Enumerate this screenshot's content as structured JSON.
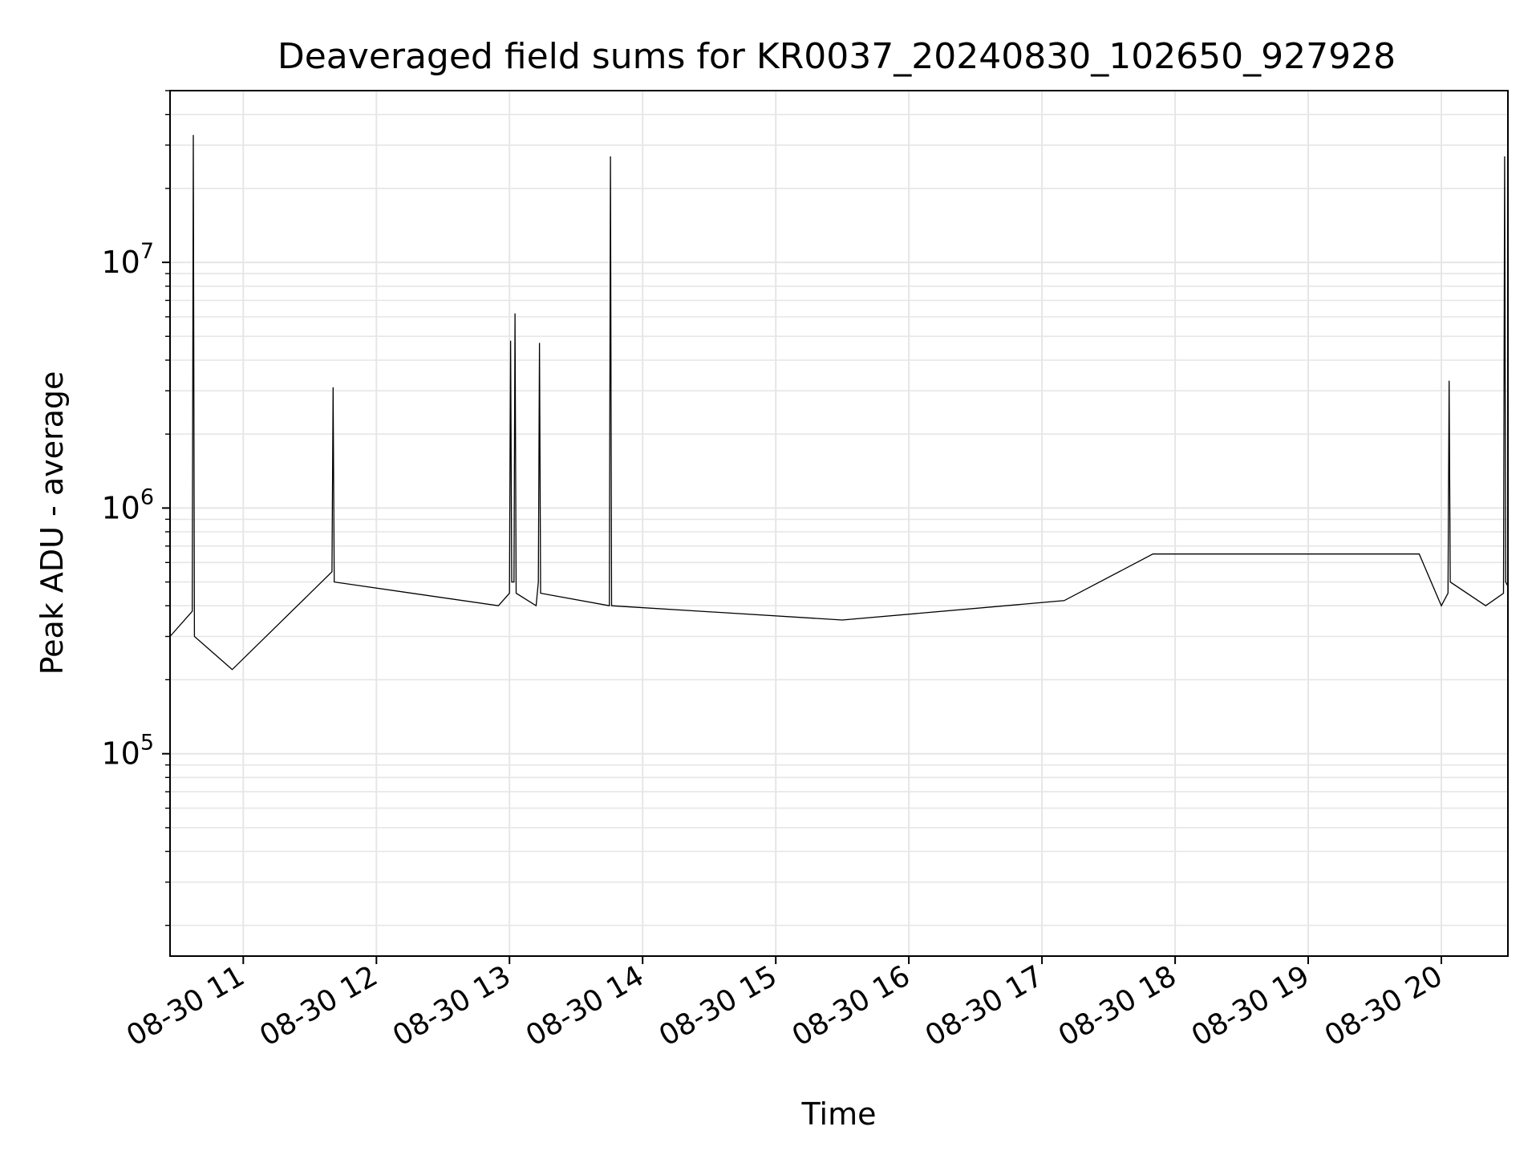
{
  "chart_data": {
    "type": "line",
    "title": "Deaveraged field sums for KR0037_20240830_102650_927928",
    "xlabel": "Time",
    "ylabel": "Peak ADU - average",
    "x_range": [
      "2024-08-30T10:27:00",
      "2024-08-30T20:30:00"
    ],
    "x_ticks": [
      {
        "t": "2024-08-30T11:00",
        "label": "08-30 11"
      },
      {
        "t": "2024-08-30T12:00",
        "label": "08-30 12"
      },
      {
        "t": "2024-08-30T13:00",
        "label": "08-30 13"
      },
      {
        "t": "2024-08-30T14:00",
        "label": "08-30 14"
      },
      {
        "t": "2024-08-30T15:00",
        "label": "08-30 15"
      },
      {
        "t": "2024-08-30T16:00",
        "label": "08-30 16"
      },
      {
        "t": "2024-08-30T17:00",
        "label": "08-30 17"
      },
      {
        "t": "2024-08-30T18:00",
        "label": "08-30 18"
      },
      {
        "t": "2024-08-30T19:00",
        "label": "08-30 19"
      },
      {
        "t": "2024-08-30T20:00",
        "label": "08-30 20"
      }
    ],
    "y_scale": "log",
    "ylim": [
      15000,
      50000000
    ],
    "y_ticks": [
      {
        "value": 100000,
        "base": "10",
        "exp": "5"
      },
      {
        "value": 1000000,
        "base": "10",
        "exp": "6"
      },
      {
        "value": 10000000,
        "base": "10",
        "exp": "7"
      }
    ],
    "grid": true,
    "line_color": "#000000",
    "grid_color": "#e6e6e6",
    "series": [
      {
        "x": [
          "2024-08-30T10:27",
          "2024-08-30T10:37",
          "2024-08-30T10:37:30",
          "2024-08-30T10:38",
          "2024-08-30T10:55",
          "2024-08-30T11:40",
          "2024-08-30T11:40:30",
          "2024-08-30T11:41",
          "2024-08-30T12:55",
          "2024-08-30T13:00",
          "2024-08-30T13:00:30",
          "2024-08-30T13:01",
          "2024-08-30T13:02",
          "2024-08-30T13:02:30",
          "2024-08-30T13:03",
          "2024-08-30T13:12",
          "2024-08-30T13:13",
          "2024-08-30T13:13:30",
          "2024-08-30T13:14",
          "2024-08-30T13:45",
          "2024-08-30T13:45:30",
          "2024-08-30T13:46",
          "2024-08-30T15:30",
          "2024-08-30T17:10",
          "2024-08-30T17:50",
          "2024-08-30T19:50",
          "2024-08-30T20:00",
          "2024-08-30T20:03",
          "2024-08-30T20:03:30",
          "2024-08-30T20:04",
          "2024-08-30T20:20",
          "2024-08-30T20:28",
          "2024-08-30T20:28:30",
          "2024-08-30T20:29",
          "2024-08-30T20:30"
        ],
        "y": [
          300000,
          380000,
          33000000,
          300000,
          220000,
          550000,
          3100000,
          500000,
          400000,
          450000,
          4800000,
          500000,
          500000,
          6200000,
          450000,
          400000,
          500000,
          4700000,
          450000,
          400000,
          27000000,
          400000,
          350000,
          420000,
          650000,
          650000,
          400000,
          450000,
          3300000,
          500000,
          400000,
          450000,
          27000000,
          500000,
          480000
        ]
      }
    ]
  }
}
